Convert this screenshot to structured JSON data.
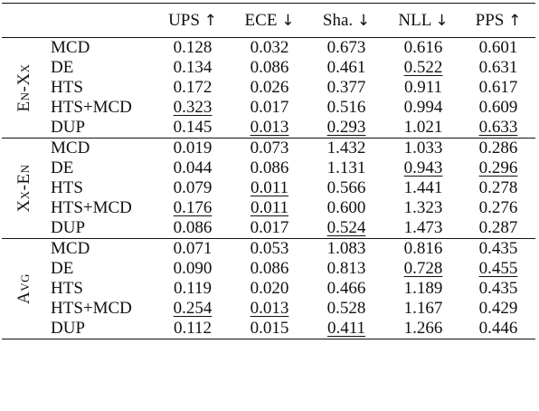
{
  "columns": [
    {
      "label": "UPS",
      "arrow": "↑"
    },
    {
      "label": "ECE",
      "arrow": "↓"
    },
    {
      "label": "Sha.",
      "arrow": "↓"
    },
    {
      "label": "NLL",
      "arrow": "↓"
    },
    {
      "label": "PPS",
      "arrow": "↑"
    }
  ],
  "groups": [
    {
      "label": "En-Xx",
      "rows": [
        {
          "method": "MCD",
          "values": [
            "0.128",
            "0.032",
            "0.673",
            "0.616",
            "0.601"
          ],
          "underline": [
            false,
            false,
            false,
            false,
            false
          ]
        },
        {
          "method": "DE",
          "values": [
            "0.134",
            "0.086",
            "0.461",
            "0.522",
            "0.631"
          ],
          "underline": [
            false,
            false,
            false,
            true,
            false
          ]
        },
        {
          "method": "HTS",
          "values": [
            "0.172",
            "0.026",
            "0.377",
            "0.911",
            "0.617"
          ],
          "underline": [
            false,
            false,
            false,
            false,
            false
          ]
        },
        {
          "method": "HTS+MCD",
          "values": [
            "0.323",
            "0.017",
            "0.516",
            "0.994",
            "0.609"
          ],
          "underline": [
            true,
            false,
            false,
            false,
            false
          ]
        },
        {
          "method": "DUP",
          "values": [
            "0.145",
            "0.013",
            "0.293",
            "1.021",
            "0.633"
          ],
          "underline": [
            false,
            true,
            true,
            false,
            true
          ]
        }
      ]
    },
    {
      "label": "Xx-En",
      "rows": [
        {
          "method": "MCD",
          "values": [
            "0.019",
            "0.073",
            "1.432",
            "1.033",
            "0.286"
          ],
          "underline": [
            false,
            false,
            false,
            false,
            false
          ]
        },
        {
          "method": "DE",
          "values": [
            "0.044",
            "0.086",
            "1.131",
            "0.943",
            "0.296"
          ],
          "underline": [
            false,
            false,
            false,
            true,
            true
          ]
        },
        {
          "method": "HTS",
          "values": [
            "0.079",
            "0.011",
            "0.566",
            "1.441",
            "0.278"
          ],
          "underline": [
            false,
            true,
            false,
            false,
            false
          ]
        },
        {
          "method": "HTS+MCD",
          "values": [
            "0.176",
            "0.011",
            "0.600",
            "1.323",
            "0.276"
          ],
          "underline": [
            true,
            true,
            false,
            false,
            false
          ]
        },
        {
          "method": "DUP",
          "values": [
            "0.086",
            "0.017",
            "0.524",
            "1.473",
            "0.287"
          ],
          "underline": [
            false,
            false,
            true,
            false,
            false
          ]
        }
      ]
    },
    {
      "label": "Avg",
      "rows": [
        {
          "method": "MCD",
          "values": [
            "0.071",
            "0.053",
            "1.083",
            "0.816",
            "0.435"
          ],
          "underline": [
            false,
            false,
            false,
            false,
            false
          ]
        },
        {
          "method": "DE",
          "values": [
            "0.090",
            "0.086",
            "0.813",
            "0.728",
            "0.455"
          ],
          "underline": [
            false,
            false,
            false,
            true,
            true
          ]
        },
        {
          "method": "HTS",
          "values": [
            "0.119",
            "0.020",
            "0.466",
            "1.189",
            "0.435"
          ],
          "underline": [
            false,
            false,
            false,
            false,
            false
          ]
        },
        {
          "method": "HTS+MCD",
          "values": [
            "0.254",
            "0.013",
            "0.528",
            "1.167",
            "0.429"
          ],
          "underline": [
            true,
            true,
            false,
            false,
            false
          ]
        },
        {
          "method": "DUP",
          "values": [
            "0.112",
            "0.015",
            "0.411",
            "1.266",
            "0.446"
          ],
          "underline": [
            false,
            false,
            true,
            false,
            false
          ]
        }
      ]
    }
  ]
}
